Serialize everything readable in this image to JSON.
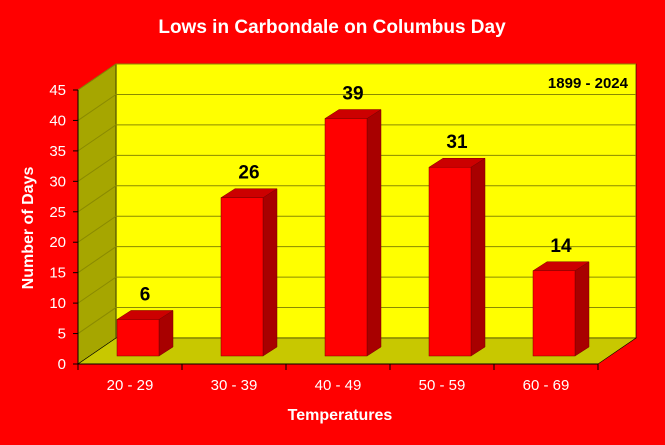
{
  "chart_data": {
    "type": "bar",
    "title": "Lows in Carbondale on Columbus Day",
    "subtitle": "1899 - 2024",
    "xlabel": "Temperatures",
    "ylabel": "Number of Days",
    "categories": [
      "20 - 29",
      "30 - 39",
      "40 - 49",
      "50 - 59",
      "60 - 69"
    ],
    "values": [
      6,
      26,
      39,
      31,
      14
    ],
    "data_labels": [
      "6",
      "26",
      "39",
      "31",
      "14"
    ],
    "ylim": [
      0,
      45
    ],
    "yticks": [
      0,
      5,
      10,
      15,
      20,
      25,
      30,
      35,
      40,
      45
    ],
    "grid": true,
    "legend": "none",
    "style": "3d-bar",
    "colors": {
      "background": "#ff0000",
      "plot_wall": "#ffff00",
      "plot_side_wall": "#a6a600",
      "plot_floor": "#c8c800",
      "gridline": "#8a8a00",
      "bar_front": "#ff0000",
      "bar_side": "#a80000",
      "bar_top": "#cc0000",
      "title_text": "#ffffff",
      "axis_text": "#000000"
    }
  }
}
